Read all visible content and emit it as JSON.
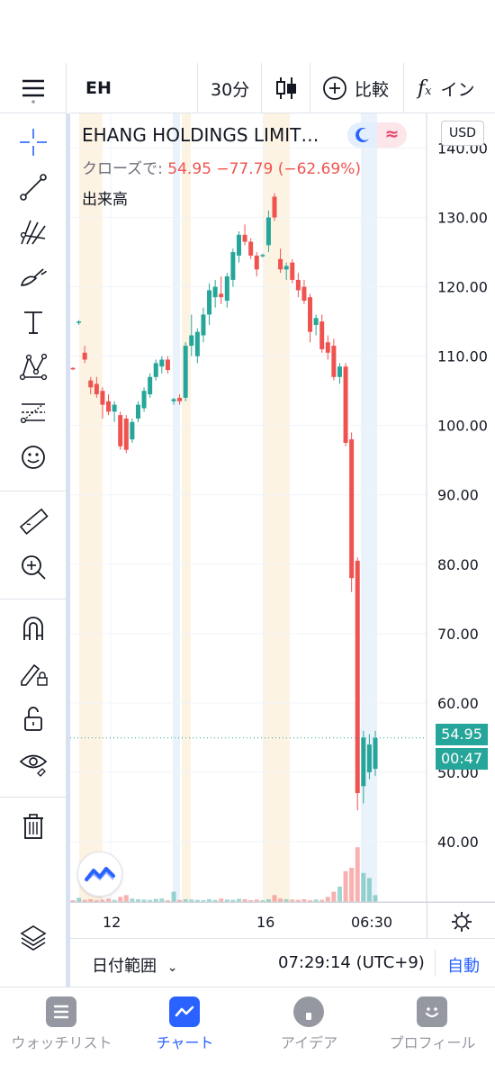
{
  "toolbar": {
    "symbol": "EH",
    "interval": "30分",
    "compare_label": "比較",
    "indicators_label": "イン"
  },
  "legend": {
    "title": "EHANG HOLDINGS LIMIT…",
    "close_prefix": "クローズで:",
    "close_value": "54.95",
    "change": "−77.79 (−62.69%)",
    "volume_label": "出来高"
  },
  "currency": "USD",
  "price_tag": "54.95",
  "countdown": "00:47",
  "time_labels": [
    "12",
    "16",
    "06:30"
  ],
  "range_bar": {
    "date_range_label": "日付範囲",
    "clock": "07:29:14 (UTC+9)",
    "auto_label": "自動"
  },
  "bottom_nav": [
    {
      "label": "ウォッチリスト",
      "icon": "watchlist-icon",
      "active": false
    },
    {
      "label": "チャート",
      "icon": "chart-icon",
      "active": true
    },
    {
      "label": "アイデア",
      "icon": "idea-icon",
      "active": false
    },
    {
      "label": "プロフィール",
      "icon": "profile-icon",
      "active": false
    }
  ],
  "colors": {
    "up": "#26a69a",
    "down": "#ef5350",
    "accent": "#2962ff",
    "premarket_band": "#fdf3e3",
    "postmarket_band": "#eaf3fb"
  },
  "chart_data": {
    "type": "candlestick",
    "title": "EHANG HOLDINGS LIMIT…",
    "interval": "30分",
    "y_ticks": [
      40,
      50,
      60,
      70,
      80,
      90,
      100,
      110,
      120,
      130,
      140
    ],
    "ylim": [
      31.3,
      145
    ],
    "x_labels": [
      "12",
      "16",
      "06:30"
    ],
    "last_price": 54.95,
    "candles": [
      [
        108.3,
        108.4,
        108.0,
        108.1
      ],
      [
        114.8,
        115.2,
        114.5,
        115.0
      ],
      [
        110.5,
        111.5,
        109.0,
        109.5
      ],
      [
        106.5,
        107.0,
        104.5,
        105.5
      ],
      [
        106.0,
        107.0,
        104.0,
        104.5
      ],
      [
        105.0,
        105.5,
        101.0,
        103.0
      ],
      [
        103.5,
        104.5,
        101.5,
        102.0
      ],
      [
        102.0,
        103.5,
        100.5,
        103.0
      ],
      [
        101.5,
        102.0,
        96.5,
        97.0
      ],
      [
        101.0,
        101.5,
        96.0,
        96.5
      ],
      [
        98.0,
        101.0,
        97.5,
        100.5
      ],
      [
        101.0,
        103.5,
        100.5,
        103.0
      ],
      [
        102.5,
        105.5,
        102.0,
        105.0
      ],
      [
        104.5,
        107.5,
        104.0,
        107.0
      ],
      [
        107.0,
        109.5,
        106.5,
        109.0
      ],
      [
        108.5,
        110.0,
        107.5,
        109.5
      ],
      [
        109.5,
        110.0,
        107.5,
        108.0
      ],
      [
        103.5,
        104.0,
        103.0,
        103.8
      ],
      [
        104.0,
        104.5,
        103.0,
        103.5
      ],
      [
        104.0,
        112.0,
        103.5,
        111.5
      ],
      [
        111.5,
        116.0,
        110.0,
        113.0
      ],
      [
        110.0,
        114.0,
        109.0,
        113.5
      ],
      [
        113.0,
        117.0,
        112.0,
        116.0
      ],
      [
        116.0,
        120.5,
        114.5,
        119.5
      ],
      [
        118.5,
        121.0,
        117.0,
        120.0
      ],
      [
        119.0,
        121.5,
        117.5,
        118.5
      ],
      [
        118.0,
        122.0,
        117.0,
        121.5
      ],
      [
        121.0,
        125.5,
        120.0,
        125.0
      ],
      [
        124.5,
        128.0,
        123.5,
        127.5
      ],
      [
        127.5,
        129.0,
        126.0,
        126.5
      ],
      [
        126.5,
        127.0,
        124.0,
        124.5
      ],
      [
        124.5,
        125.0,
        121.5,
        122.5
      ],
      [
        124.5,
        124.8,
        124.2,
        124.6
      ],
      [
        126.0,
        131.0,
        125.0,
        130.0
      ],
      [
        133.0,
        133.5,
        129.5,
        130.0
      ],
      [
        124.0,
        125.5,
        122.0,
        122.5
      ],
      [
        122.5,
        123.5,
        121.0,
        123.0
      ],
      [
        123.5,
        124.0,
        120.5,
        121.0
      ],
      [
        121.0,
        122.0,
        118.5,
        119.5
      ],
      [
        120.0,
        121.0,
        117.5,
        118.0
      ],
      [
        118.5,
        119.0,
        112.0,
        113.5
      ],
      [
        114.5,
        116.0,
        113.0,
        115.5
      ],
      [
        115.0,
        116.0,
        110.5,
        111.0
      ],
      [
        112.0,
        113.0,
        109.5,
        110.5
      ],
      [
        111.5,
        112.5,
        106.5,
        107.0
      ],
      [
        107.0,
        109.0,
        106.0,
        108.5
      ],
      [
        108.5,
        109.0,
        97.0,
        97.5
      ],
      [
        98.0,
        99.0,
        76.0,
        78.0
      ],
      [
        80.5,
        81.0,
        44.5,
        47.0
      ],
      [
        48.0,
        56.0,
        45.5,
        55.0
      ],
      [
        50.0,
        55.5,
        49.0,
        54.0
      ],
      [
        50.5,
        56.0,
        49.5,
        54.95
      ]
    ],
    "volume_relative": [
      0.05,
      0.12,
      0.06,
      0.08,
      0.05,
      0.07,
      0.1,
      0.06,
      0.15,
      0.2,
      0.1,
      0.08,
      0.07,
      0.06,
      0.09,
      0.1,
      0.05,
      0.3,
      0.06,
      0.08,
      0.07,
      0.06,
      0.05,
      0.08,
      0.06,
      0.1,
      0.07,
      0.06,
      0.09,
      0.08,
      0.05,
      0.07,
      0.05,
      0.08,
      0.2,
      0.1,
      0.08,
      0.07,
      0.06,
      0.08,
      0.05,
      0.07,
      0.06,
      0.15,
      0.3,
      0.45,
      0.9,
      1.0,
      1.6,
      0.85,
      0.7,
      0.2
    ]
  }
}
